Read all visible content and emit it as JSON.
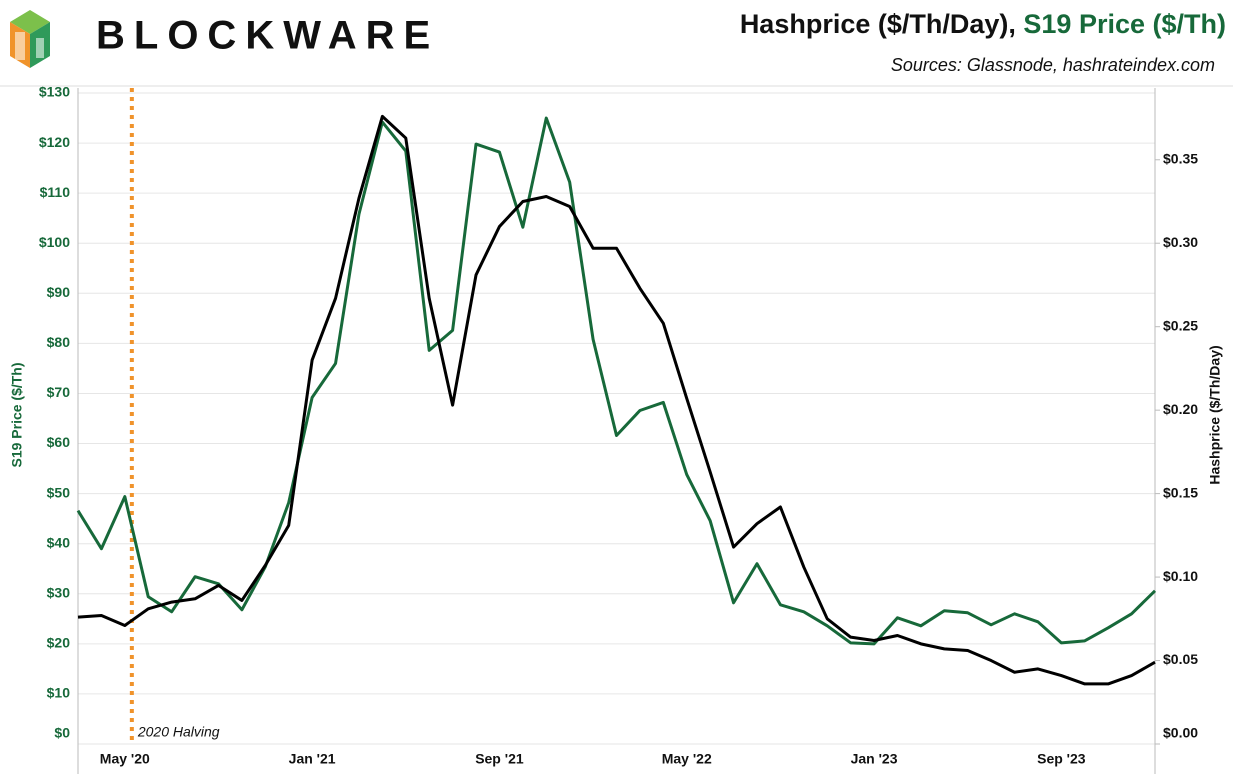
{
  "brand": "BLOCKWARE",
  "chart_data": {
    "type": "line",
    "title": {
      "part1": "Hashprice ($/Th/Day), ",
      "part2": "S19 Price ($/Th)"
    },
    "subtitle": "Sources: Glassnode, hashrateindex.com",
    "y_label": "S19 Price ($/Th)",
    "y2_label": "Hashprice ($/Th/Day)",
    "categories": [
      null,
      null,
      "May '20",
      null,
      null,
      null,
      null,
      null,
      null,
      null,
      "Jan '21",
      null,
      null,
      null,
      null,
      null,
      null,
      null,
      "Sep '21",
      null,
      null,
      null,
      null,
      null,
      null,
      null,
      "May '22",
      null,
      null,
      null,
      null,
      null,
      null,
      null,
      "Jan '23",
      null,
      null,
      null,
      null,
      null,
      null,
      null,
      "Sep '23",
      null,
      null,
      null,
      null
    ],
    "series": [
      {
        "name": "S19 Price ($/Th)",
        "color": "#17693a",
        "axis": "y",
        "values": [
          46.6,
          39,
          49.4,
          29.4,
          26.4,
          33.4,
          32,
          26.8,
          35.4,
          48.2,
          69.2,
          76,
          105.8,
          124.2,
          118.4,
          78.6,
          82.6,
          119.8,
          118.2,
          103.2,
          125,
          112.2,
          80.8,
          61.6,
          66.6,
          68.2,
          53.8,
          44.6,
          28.2,
          36,
          27.8,
          26.4,
          23.6,
          20.2,
          20,
          25.2,
          23.6,
          26.6,
          26.2,
          23.8,
          26,
          24.4,
          20.2,
          20.6,
          23.2,
          26,
          30.6
        ]
      },
      {
        "name": "Hashprice ($/Th/Day)",
        "color": "#000000",
        "axis": "y2",
        "values": [
          0.076,
          0.077,
          0.071,
          0.081,
          0.085,
          0.087,
          0.095,
          0.086,
          0.107,
          0.131,
          0.23,
          0.267,
          0.327,
          0.376,
          0.363,
          0.267,
          0.203,
          0.281,
          0.31,
          0.325,
          0.328,
          0.322,
          0.297,
          0.297,
          0.273,
          0.252,
          0.207,
          0.163,
          0.118,
          0.132,
          0.142,
          0.106,
          0.075,
          0.064,
          0.062,
          0.065,
          0.06,
          0.057,
          0.056,
          0.05,
          0.043,
          0.045,
          0.041,
          0.036,
          0.036,
          0.041,
          0.049
        ]
      }
    ],
    "ylim": [
      0,
      130
    ],
    "yticks": [
      {
        "value": 0,
        "label": "$0"
      },
      {
        "value": 10,
        "label": "$10"
      },
      {
        "value": 20,
        "label": "$20"
      },
      {
        "value": 30,
        "label": "$30"
      },
      {
        "value": 40,
        "label": "$40"
      },
      {
        "value": 50,
        "label": "$50"
      },
      {
        "value": 60,
        "label": "$60"
      },
      {
        "value": 70,
        "label": "$70"
      },
      {
        "value": 80,
        "label": "$80"
      },
      {
        "value": 90,
        "label": "$90"
      },
      {
        "value": 100,
        "label": "$100"
      },
      {
        "value": 110,
        "label": "$110"
      },
      {
        "value": 120,
        "label": "$120"
      },
      {
        "value": 130,
        "label": "$130"
      }
    ],
    "y2lim": [
      0,
      0.39
    ],
    "y2ticks": [
      {
        "value": 0,
        "label": "$0.00"
      },
      {
        "value": 0.05,
        "label": "$0.05"
      },
      {
        "value": 0.1,
        "label": "$0.10"
      },
      {
        "value": 0.15,
        "label": "$0.15"
      },
      {
        "value": 0.2,
        "label": "$0.20"
      },
      {
        "value": 0.25,
        "label": "$0.25"
      },
      {
        "value": 0.3,
        "label": "$0.30"
      },
      {
        "value": 0.35,
        "label": "$0.35"
      }
    ],
    "grid": true,
    "annotation": {
      "label": "2020 Halving",
      "x": 2.3,
      "color": "#f0932b"
    }
  }
}
